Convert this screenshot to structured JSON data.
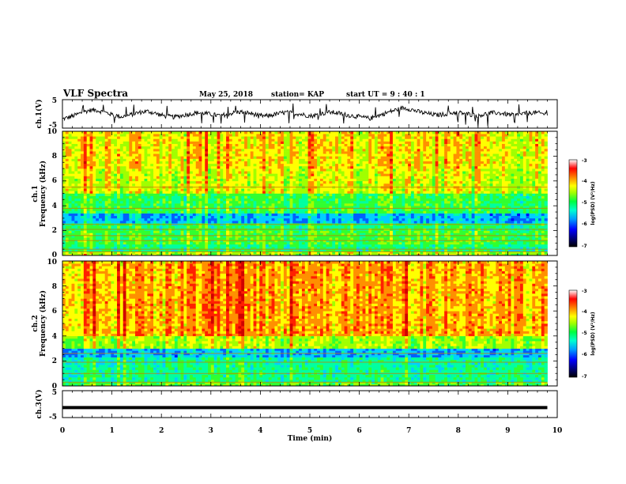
{
  "header": {
    "title": "VLF Spectra",
    "date": "May 25, 2018",
    "station": "station= KAP",
    "start": "start  UT =   9 : 40 : 1"
  },
  "chart_data": [
    {
      "type": "line",
      "panel": "ch1-waveform",
      "ylabel": "ch.1(V)",
      "ylim": [
        -5,
        5
      ],
      "yticks": [
        "5",
        "-5"
      ],
      "xlim": [
        0,
        10
      ],
      "series": [
        {
          "values": [
            -1.8,
            -1.2,
            -0.4,
            0.5,
            1.2,
            1.4,
            0.8,
            0.2,
            -0.5,
            -1.0,
            -0.6,
            0.1,
            0.6,
            0.9,
            0.3,
            -0.4,
            -0.9,
            -1.1,
            -0.7,
            -0.2,
            0.2,
            0.4,
            0.1,
            -0.3,
            -0.6,
            -0.2,
            0.3,
            0.7,
            0.5,
            0.0,
            -0.5,
            -0.8,
            -0.4,
            0.1,
            0.5,
            0.4,
            0.0,
            -0.4,
            -0.7,
            -0.3,
            0.3,
            0.6,
            0.3,
            -0.2,
            -0.6,
            -0.9,
            -1.3,
            -1.6,
            -0.8,
            0.0,
            0.8,
            1.5,
            2.1,
            1.7,
            1.0,
            0.4,
            0.0,
            -0.4,
            -0.2,
            0.2,
            0.5,
            0.3,
            -0.1,
            -0.5,
            -0.3,
            0.1,
            0.4,
            0.2,
            -0.2,
            -0.5,
            -0.1,
            0.3,
            0.5,
            0.2,
            -0.2
          ]
        }
      ]
    },
    {
      "type": "heatmap",
      "panel": "ch1-spectrogram",
      "ylabel": "ch.1",
      "ylabel2": "Frequency  (kHz)",
      "ylim": [
        0,
        10
      ],
      "yticks": [
        "0",
        "2",
        "4",
        "6",
        "8",
        "10"
      ],
      "xlim": [
        0,
        10
      ],
      "bands": [
        {
          "f": [
            0.0,
            0.3
          ],
          "level": -4.6
        },
        {
          "f": [
            0.3,
            0.9
          ],
          "level": -5.3
        },
        {
          "f": [
            0.9,
            2.0
          ],
          "level": -5.0
        },
        {
          "f": [
            2.0,
            2.6
          ],
          "level": -5.2
        },
        {
          "f": [
            2.6,
            3.4
          ],
          "level": -5.9
        },
        {
          "f": [
            3.4,
            5.0
          ],
          "level": -5.1
        },
        {
          "f": [
            5.0,
            7.0
          ],
          "level": -4.4
        },
        {
          "f": [
            7.0,
            10.0
          ],
          "level": -4.2
        }
      ],
      "lines_khz": [
        0.3,
        0.5,
        1.2,
        1.6,
        2.1,
        2.5,
        3.8,
        5.5
      ],
      "colorbar": {
        "label": "log(PSD) (V²/Hz)",
        "ticks": [
          "-3",
          "-4",
          "-5",
          "-6",
          "-7"
        ]
      }
    },
    {
      "type": "heatmap",
      "panel": "ch2-spectrogram",
      "ylabel": "ch.2",
      "ylabel2": "Frequency  (kHz)",
      "ylim": [
        0,
        10
      ],
      "yticks": [
        "0",
        "2",
        "4",
        "6",
        "8",
        "10"
      ],
      "xlim": [
        0,
        10
      ],
      "bands": [
        {
          "f": [
            0.0,
            0.3
          ],
          "level": -4.9
        },
        {
          "f": [
            0.3,
            1.5
          ],
          "level": -5.3
        },
        {
          "f": [
            1.5,
            2.3
          ],
          "level": -5.4
        },
        {
          "f": [
            2.3,
            3.0
          ],
          "level": -5.9
        },
        {
          "f": [
            3.0,
            4.0
          ],
          "level": -4.6
        },
        {
          "f": [
            4.0,
            10.0
          ],
          "level": -3.9
        }
      ],
      "lines_khz": [
        0.3,
        1.0,
        1.9,
        2.6
      ],
      "colorbar": {
        "label": "log(PSD) (V²/Hz)",
        "ticks": [
          "-3",
          "-4",
          "-5",
          "-6",
          "-7"
        ]
      }
    },
    {
      "type": "line",
      "panel": "ch3-waveform",
      "ylabel": "ch.3(V)",
      "ylim": [
        -5,
        5
      ],
      "yticks": [
        "5",
        "-5"
      ],
      "xlim": [
        0,
        10
      ],
      "xticks": [
        "0",
        "1",
        "2",
        "3",
        "4",
        "5",
        "6",
        "7",
        "8",
        "9",
        "10"
      ],
      "xlabel": "Time  (min)",
      "series": [
        {
          "values": [
            -1.3,
            -1.3
          ]
        }
      ],
      "data_end_min": 9.8
    }
  ],
  "palette": [
    "#000080",
    "#0000ff",
    "#0060ff",
    "#00d0ff",
    "#00ffa0",
    "#30ff30",
    "#a0ff00",
    "#ffff00",
    "#ff9000",
    "#ff2000",
    "#d00000"
  ]
}
